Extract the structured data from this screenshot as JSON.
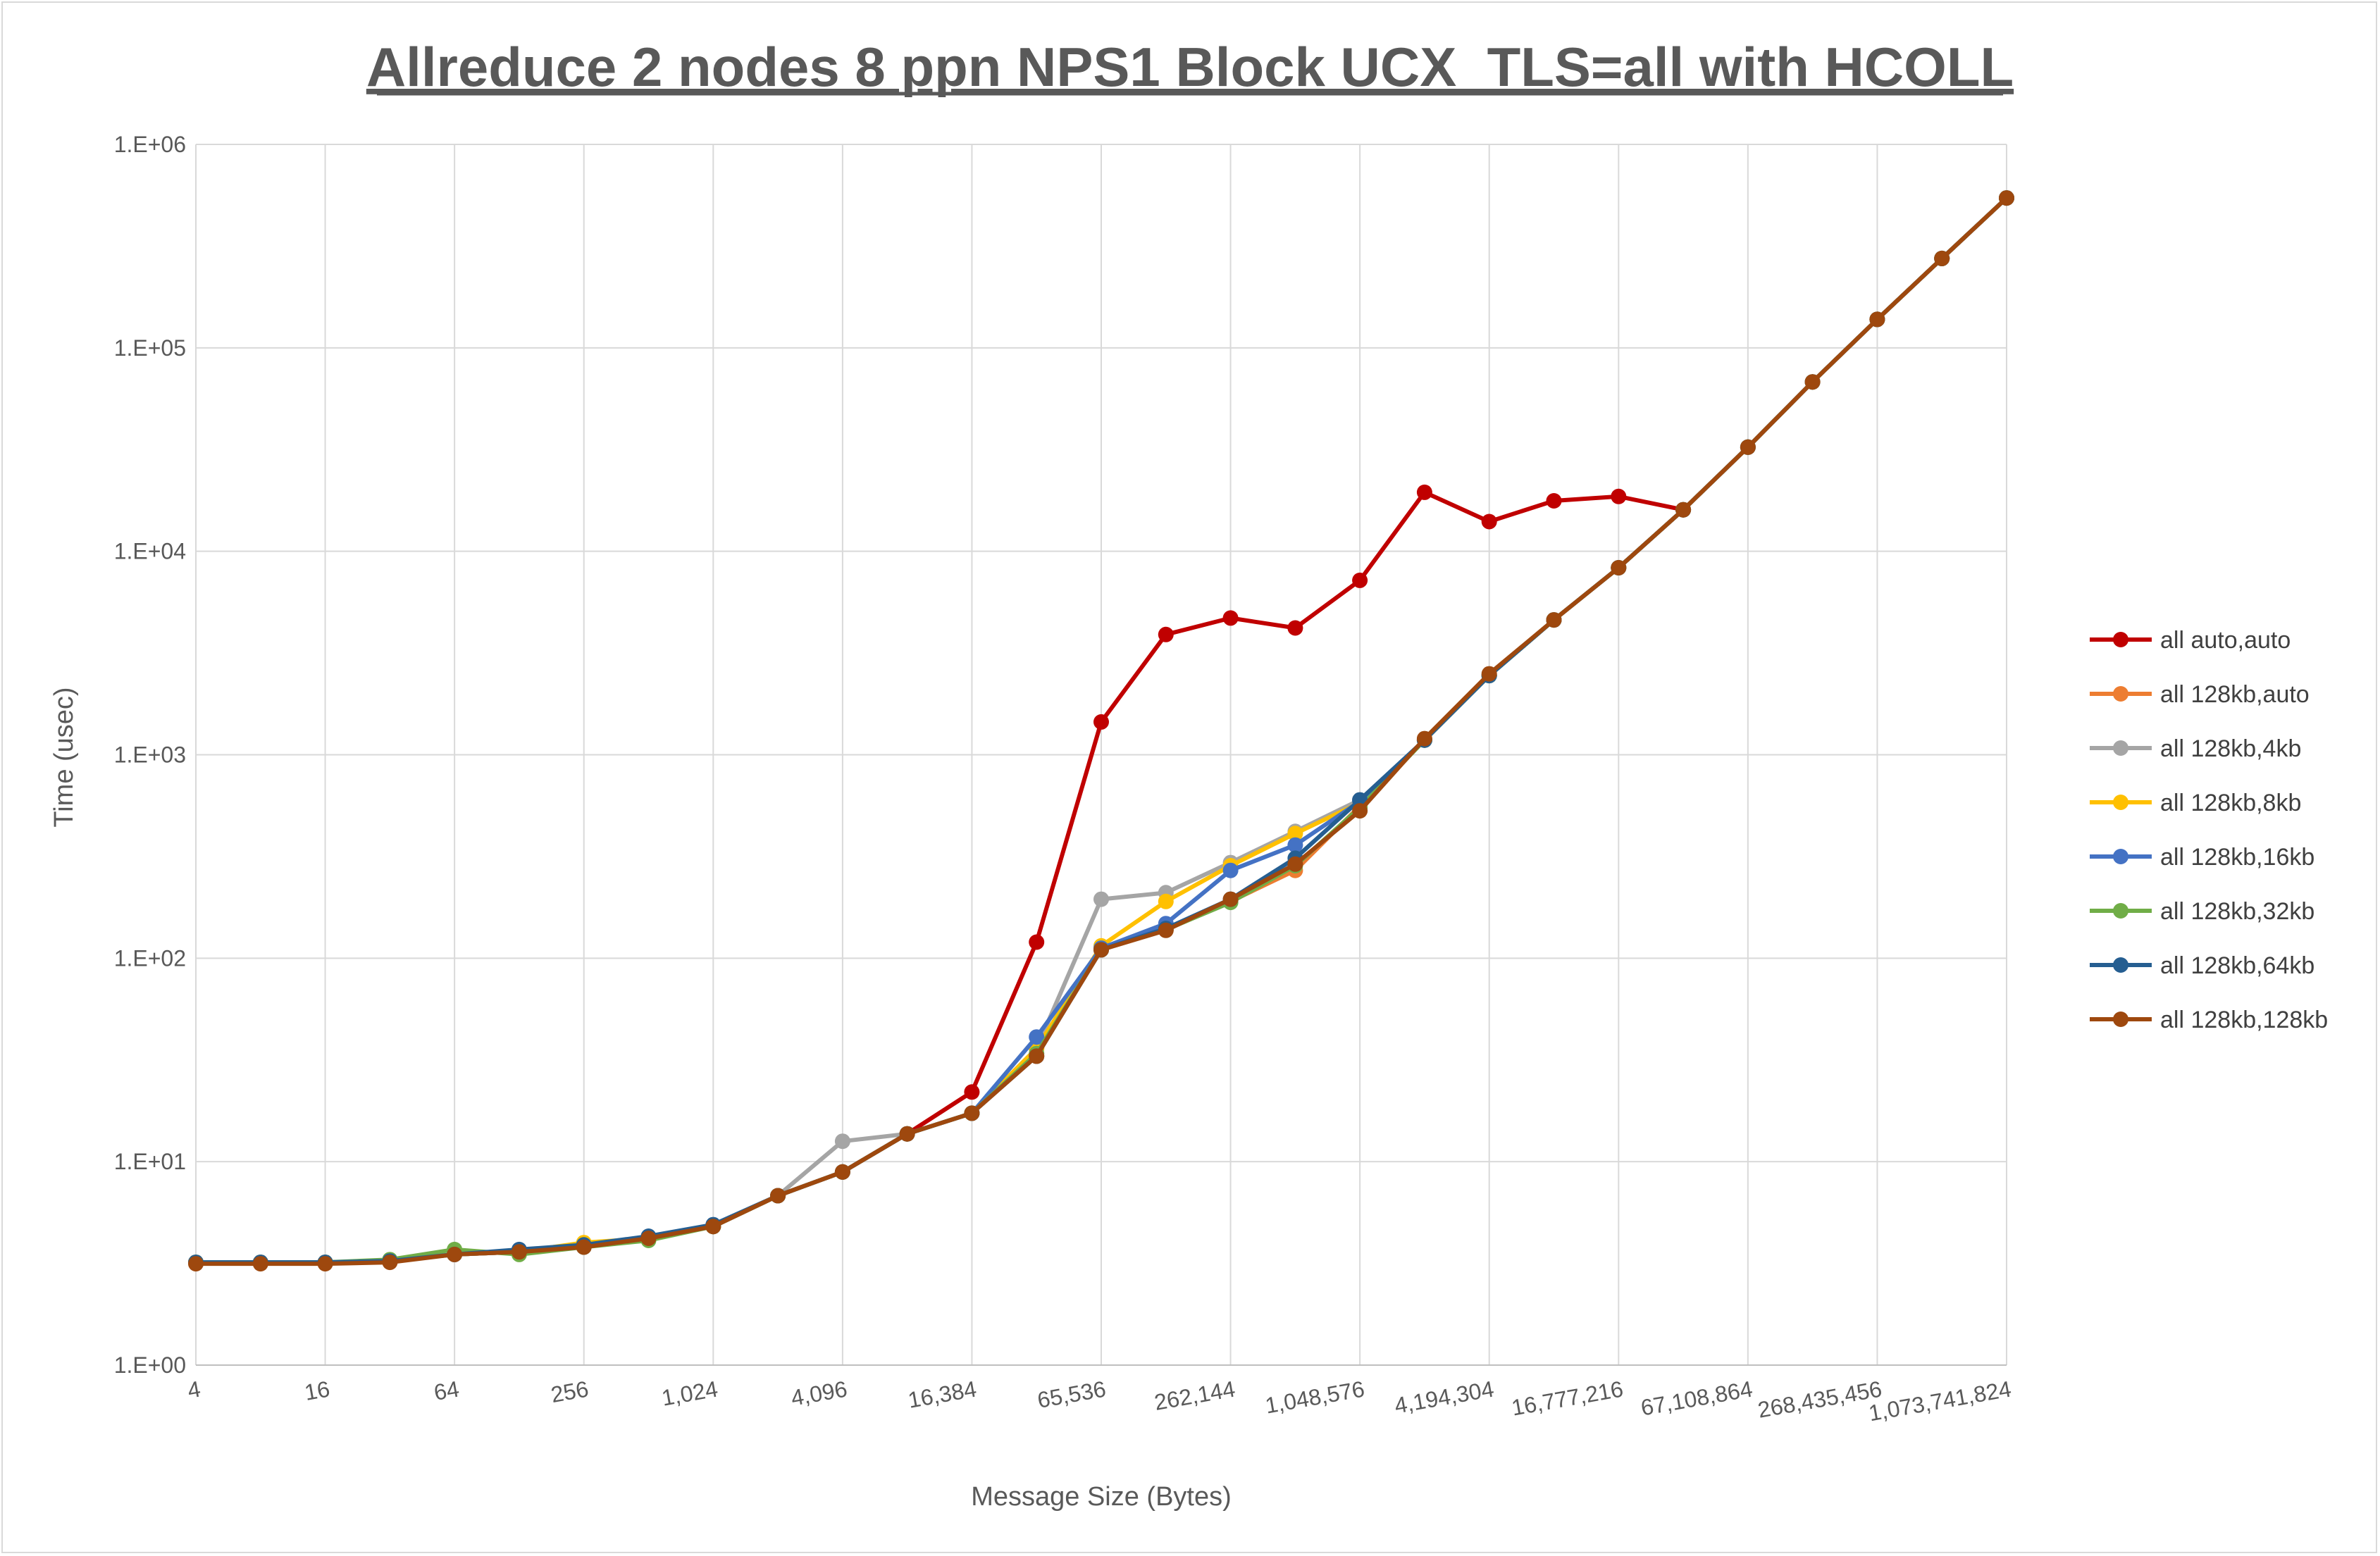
{
  "chart_data": {
    "type": "line",
    "title": "Allreduce 2 nodes 8 ppn NPS1 Block UCX_TLS=all with HCOLL",
    "xlabel": "Message Size (Bytes)",
    "ylabel": "Time (usec)",
    "x_scale": "log2",
    "y_scale": "log10",
    "ylim": [
      1,
      1000000
    ],
    "xlim": [
      4,
      1073741824
    ],
    "grid": true,
    "legend_position": "right",
    "x": [
      4,
      8,
      16,
      32,
      64,
      128,
      256,
      512,
      1024,
      2048,
      4096,
      8192,
      16384,
      32768,
      65536,
      131072,
      262144,
      524288,
      1048576,
      2097152,
      4194304,
      8388608,
      16777216,
      33554432,
      67108864,
      134217728,
      268435456,
      536870912,
      1073741824
    ],
    "x_tick_labels": [
      "4",
      "16",
      "64",
      "256",
      "1,024",
      "4,096",
      "16,384",
      "65,536",
      "262,144",
      "1,048,576",
      "4,194,304",
      "16,777,216",
      "67,108,864",
      "268,435,456",
      "1,073,741,824"
    ],
    "y_tick_labels": [
      "1.E+00",
      "1.E+01",
      "1.E+02",
      "1.E+03",
      "1.E+04",
      "1.E+05",
      "1.E+06"
    ],
    "series": [
      {
        "name": "all auto,auto",
        "color": "#c00000",
        "values": [
          3.2,
          3.2,
          3.2,
          3.25,
          3.5,
          3.6,
          3.8,
          4.2,
          4.8,
          6.8,
          8.9,
          13.7,
          22,
          120,
          1450,
          3900,
          4700,
          4200,
          7200,
          19500,
          14000,
          17700,
          18600,
          16000,
          null,
          null,
          null,
          null,
          null
        ]
      },
      {
        "name": "all 128kb,auto",
        "color": "#ed7d31",
        "values": [
          3.2,
          3.2,
          3.2,
          3.25,
          3.5,
          3.6,
          3.8,
          4.2,
          4.8,
          6.8,
          8.9,
          13.7,
          17.3,
          33,
          112,
          138,
          190,
          270,
          560,
          1180,
          2450,
          4600,
          8300,
          16000,
          32500,
          68000,
          138000,
          275000,
          545000
        ]
      },
      {
        "name": "all 128kb,4kb",
        "color": "#a5a5a5",
        "values": [
          3.2,
          3.2,
          3.2,
          3.25,
          3.5,
          3.6,
          3.8,
          4.2,
          4.8,
          6.8,
          12.6,
          13.7,
          17.3,
          36,
          195,
          210,
          295,
          420,
          600,
          1180,
          2450,
          4600,
          8300,
          16000,
          32500,
          68000,
          138000,
          275000,
          545000
        ]
      },
      {
        "name": "all 128kb,8kb",
        "color": "#ffc000",
        "values": [
          3.2,
          3.2,
          3.2,
          3.25,
          3.5,
          3.6,
          4.0,
          4.2,
          4.8,
          6.8,
          8.9,
          13.7,
          17.3,
          36,
          115,
          190,
          285,
          410,
          580,
          1180,
          2450,
          4600,
          8300,
          16000,
          32500,
          68000,
          138000,
          275000,
          545000
        ]
      },
      {
        "name": "all 128kb,16kb",
        "color": "#4472c4",
        "values": [
          3.2,
          3.2,
          3.2,
          3.25,
          3.5,
          3.6,
          3.8,
          4.2,
          4.8,
          6.8,
          8.9,
          13.7,
          17.3,
          41,
          112,
          148,
          270,
          360,
          590,
          1180,
          2450,
          4600,
          8300,
          16000,
          32500,
          68000,
          138000,
          275000,
          545000
        ]
      },
      {
        "name": "all 128kb,32kb",
        "color": "#70ad47",
        "values": [
          3.2,
          3.2,
          3.2,
          3.3,
          3.7,
          3.5,
          3.8,
          4.1,
          4.8,
          6.8,
          8.9,
          13.7,
          17.3,
          34,
          110,
          138,
          188,
          285,
          550,
          1180,
          2450,
          4600,
          8300,
          16000,
          32500,
          68000,
          138000,
          275000,
          545000
        ]
      },
      {
        "name": "all 128kb,64kb",
        "color": "#255e91",
        "values": [
          3.2,
          3.2,
          3.2,
          3.25,
          3.5,
          3.7,
          3.9,
          4.3,
          4.9,
          6.8,
          8.9,
          13.7,
          17.3,
          33,
          110,
          140,
          195,
          310,
          600,
          1180,
          2450,
          4600,
          8300,
          16000,
          32500,
          68000,
          138000,
          275000,
          545000
        ]
      },
      {
        "name": "all 128kb,128kb",
        "color": "#9e480e",
        "values": [
          3.15,
          3.15,
          3.15,
          3.2,
          3.5,
          3.6,
          3.8,
          4.2,
          4.8,
          6.8,
          8.9,
          13.7,
          17.3,
          33,
          110,
          137,
          195,
          290,
          530,
          1200,
          2500,
          4600,
          8300,
          16000,
          32500,
          68000,
          138000,
          275000,
          545000
        ]
      }
    ]
  }
}
